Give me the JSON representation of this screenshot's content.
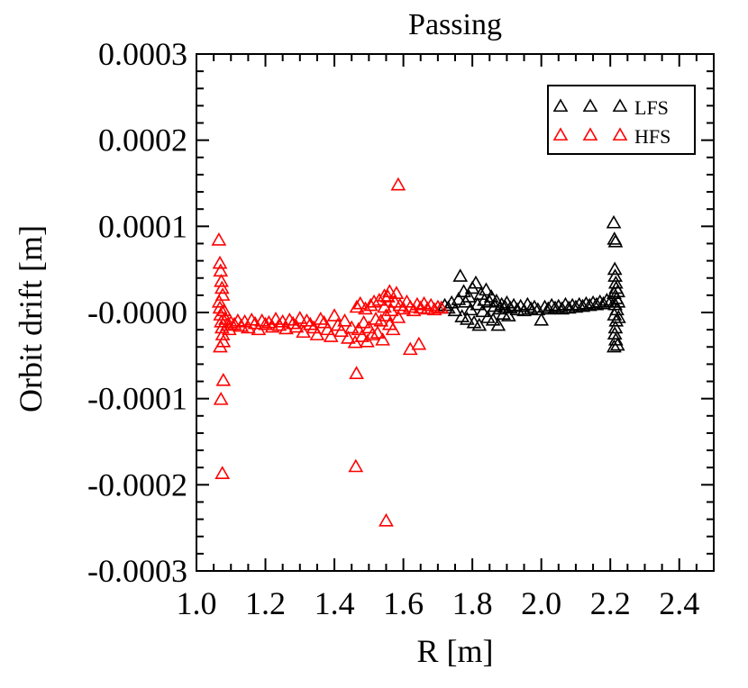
{
  "chart_data": {
    "type": "scatter",
    "title": "Passing",
    "xlabel": "R [m]",
    "ylabel": "Orbit drift [m]",
    "xlim": [
      1.0,
      2.5
    ],
    "ylim": [
      -0.0003,
      0.0003
    ],
    "x_ticks": [
      1.0,
      1.2,
      1.4,
      1.6,
      1.8,
      2.0,
      2.2,
      2.4
    ],
    "x_tick_labels": [
      "1.0",
      "1.2",
      "1.4",
      "1.6",
      "1.8",
      "2.0",
      "2.2",
      "2.4"
    ],
    "y_ticks": [
      0.0003,
      0.0002,
      0.0001,
      0.0,
      -0.0001,
      -0.0002,
      -0.0003
    ],
    "y_tick_labels": [
      "0.0003",
      "0.0002",
      "0.0001",
      "-0.0000",
      "-0.0001",
      "-0.0002",
      "-0.0003"
    ],
    "grid": false,
    "legend_position": "top-right",
    "marker": "open-triangle",
    "series": [
      {
        "name": "LFS",
        "color": "#000000",
        "points": [
          [
            1.72,
            8e-06
          ],
          [
            1.73,
            5e-06
          ],
          [
            1.74,
            1.1e-05
          ],
          [
            1.75,
            2e-06
          ],
          [
            1.76,
            1.5e-05
          ],
          [
            1.765,
            4.2e-05
          ],
          [
            1.77,
            -5e-06
          ],
          [
            1.775,
            2.4e-05
          ],
          [
            1.78,
            1.2e-05
          ],
          [
            1.785,
            -8e-06
          ],
          [
            1.79,
            1.8e-05
          ],
          [
            1.795,
            3e-06
          ],
          [
            1.8,
            2.8e-05
          ],
          [
            1.805,
            -1.2e-05
          ],
          [
            1.81,
            3.4e-05
          ],
          [
            1.815,
            9e-06
          ],
          [
            1.82,
            -1.5e-05
          ],
          [
            1.825,
            2.1e-05
          ],
          [
            1.83,
            1e-06
          ],
          [
            1.835,
            1.4e-05
          ],
          [
            1.84,
            2.6e-05
          ],
          [
            1.845,
            -6e-06
          ],
          [
            1.85,
            1.2e-05
          ],
          [
            1.855,
            1.8e-05
          ],
          [
            1.86,
            -9e-06
          ],
          [
            1.865,
            7e-06
          ],
          [
            1.87,
            1.3e-05
          ],
          [
            1.875,
            -1.5e-05
          ],
          [
            1.88,
            4e-06
          ],
          [
            1.885,
            9e-06
          ],
          [
            1.89,
            -2e-06
          ],
          [
            1.895,
            6e-06
          ],
          [
            1.9,
            1.1e-05
          ],
          [
            1.905,
            -4e-06
          ],
          [
            1.91,
            5e-06
          ],
          [
            1.92,
            8e-06
          ],
          [
            1.93,
            3e-06
          ],
          [
            1.94,
            7e-06
          ],
          [
            1.95,
            2e-06
          ],
          [
            1.96,
            9e-06
          ],
          [
            1.97,
            4e-06
          ],
          [
            1.98,
            6e-06
          ],
          [
            1.99,
            3e-06
          ],
          [
            2.0,
            -9e-06
          ],
          [
            2.01,
            6e-06
          ],
          [
            2.02,
            4e-06
          ],
          [
            2.03,
            8e-06
          ],
          [
            2.04,
            5e-06
          ],
          [
            2.05,
            7e-06
          ],
          [
            2.06,
            4e-06
          ],
          [
            2.07,
            9e-06
          ],
          [
            2.08,
            5e-06
          ],
          [
            2.09,
            8e-06
          ],
          [
            2.1,
            6e-06
          ],
          [
            2.11,
            9e-06
          ],
          [
            2.12,
            7e-06
          ],
          [
            2.13,
            1e-05
          ],
          [
            2.14,
            8e-06
          ],
          [
            2.15,
            1.1e-05
          ],
          [
            2.16,
            9e-06
          ],
          [
            2.17,
            1.2e-05
          ],
          [
            2.18,
            1e-05
          ],
          [
            2.19,
            1.4e-05
          ],
          [
            2.2,
            1.2e-05
          ],
          [
            2.21,
            0.000104
          ],
          [
            2.212,
            8.5e-05
          ],
          [
            2.215,
            8.2e-05
          ],
          [
            2.213,
            5e-05
          ],
          [
            2.214,
            4.2e-05
          ],
          [
            2.216,
            3.4e-05
          ],
          [
            2.217,
            2.8e-05
          ],
          [
            2.211,
            2.2e-05
          ],
          [
            2.218,
            1.6e-05
          ],
          [
            2.214,
            9e-06
          ],
          [
            2.219,
            3e-06
          ],
          [
            2.212,
            -3e-06
          ],
          [
            2.217,
            -1e-05
          ],
          [
            2.215,
            -1.8e-05
          ],
          [
            2.213,
            -2.5e-05
          ],
          [
            2.216,
            -3.2e-05
          ],
          [
            2.211,
            -4e-05
          ],
          [
            2.221,
            -3.8e-05
          ],
          [
            2.222,
            2.4e-05
          ],
          [
            2.223,
            1.2e-05
          ],
          [
            2.224,
            -6e-06
          ]
        ]
      },
      {
        "name": "HFS",
        "color": "#ff0000",
        "points": [
          [
            1.065,
            8.4e-05
          ],
          [
            1.068,
            5.7e-05
          ],
          [
            1.07,
            4.8e-05
          ],
          [
            1.072,
            3.6e-05
          ],
          [
            1.074,
            2.8e-05
          ],
          [
            1.076,
            2e-05
          ],
          [
            1.066,
            1.2e-05
          ],
          [
            1.068,
            5e-06
          ],
          [
            1.07,
            -3e-06
          ],
          [
            1.072,
            -1.1e-05
          ],
          [
            1.074,
            -1.8e-05
          ],
          [
            1.076,
            -2.6e-05
          ],
          [
            1.078,
            -3.4e-05
          ],
          [
            1.069,
            -4e-05
          ],
          [
            1.071,
            -0.000101
          ],
          [
            1.078,
            -7.9e-05
          ],
          [
            1.075,
            -0.000187
          ],
          [
            1.08,
            2e-06
          ],
          [
            1.085,
            -8e-06
          ],
          [
            1.09,
            -1.5e-05
          ],
          [
            1.095,
            -2e-05
          ],
          [
            1.1,
            -1.2e-05
          ],
          [
            1.11,
            -1.4e-05
          ],
          [
            1.12,
            -1e-05
          ],
          [
            1.13,
            -1.6e-05
          ],
          [
            1.14,
            -1.1e-05
          ],
          [
            1.15,
            -1.8e-05
          ],
          [
            1.16,
            -9e-06
          ],
          [
            1.17,
            -1.3e-05
          ],
          [
            1.18,
            -2e-05
          ],
          [
            1.19,
            -1e-05
          ],
          [
            1.2,
            -1.4e-05
          ],
          [
            1.21,
            -1.2e-05
          ],
          [
            1.22,
            -1.7e-05
          ],
          [
            1.23,
            -8e-06
          ],
          [
            1.24,
            -1.5e-05
          ],
          [
            1.25,
            -1.1e-05
          ],
          [
            1.26,
            -1.9e-05
          ],
          [
            1.27,
            -9e-06
          ],
          [
            1.28,
            -1.3e-05
          ],
          [
            1.29,
            -1.7e-05
          ],
          [
            1.3,
            -7e-06
          ],
          [
            1.31,
            -2.3e-05
          ],
          [
            1.32,
            -1e-05
          ],
          [
            1.33,
            -1.4e-05
          ],
          [
            1.34,
            -1.8e-05
          ],
          [
            1.35,
            -2.6e-05
          ],
          [
            1.36,
            -8e-06
          ],
          [
            1.37,
            -1.2e-05
          ],
          [
            1.38,
            -2e-05
          ],
          [
            1.39,
            -2.8e-05
          ],
          [
            1.4,
            -4e-06
          ],
          [
            1.41,
            -1.5e-05
          ],
          [
            1.42,
            -2.2e-05
          ],
          [
            1.43,
            -1e-05
          ],
          [
            1.44,
            -3e-05
          ],
          [
            1.45,
            -1.8e-05
          ],
          [
            1.46,
            -3.5e-05
          ],
          [
            1.465,
            6e-06
          ],
          [
            1.47,
            -2e-05
          ],
          [
            1.475,
            1e-05
          ],
          [
            1.48,
            -2.8e-05
          ],
          [
            1.485,
            -1.2e-05
          ],
          [
            1.49,
            4e-06
          ],
          [
            1.495,
            -3.4e-05
          ],
          [
            1.5,
            -1.8e-05
          ],
          [
            1.505,
            8e-06
          ],
          [
            1.51,
            -2.6e-05
          ],
          [
            1.515,
            1.2e-05
          ],
          [
            1.52,
            -8e-06
          ],
          [
            1.525,
            -2.4e-05
          ],
          [
            1.53,
            1.4e-05
          ],
          [
            1.535,
            -1e-05
          ],
          [
            1.54,
            -3.2e-05
          ],
          [
            1.545,
            6e-06
          ],
          [
            1.55,
            -4e-06
          ],
          [
            1.555,
            1.8e-05
          ],
          [
            1.56,
            -1.4e-05
          ],
          [
            1.565,
            2e-06
          ],
          [
            1.57,
            -2e-05
          ],
          [
            1.575,
            1.2e-05
          ],
          [
            1.58,
            2.2e-05
          ],
          [
            1.585,
            -6e-06
          ],
          [
            1.59,
            8e-06
          ],
          [
            1.6,
            4e-06
          ],
          [
            1.61,
            1.2e-05
          ],
          [
            1.62,
            6e-06
          ],
          [
            1.63,
            2e-06
          ],
          [
            1.64,
            9e-06
          ],
          [
            1.65,
            5e-06
          ],
          [
            1.66,
            1e-05
          ],
          [
            1.67,
            4e-06
          ],
          [
            1.68,
            8e-06
          ],
          [
            1.69,
            3e-06
          ],
          [
            1.7,
            6e-06
          ],
          [
            1.71,
            5e-06
          ],
          [
            1.585,
            0.000148
          ],
          [
            1.464,
            -7.1e-05
          ],
          [
            1.462,
            -0.000179
          ],
          [
            1.55,
            -0.000242
          ],
          [
            1.62,
            -4.3e-05
          ],
          [
            1.645,
            -3.7e-05
          ],
          [
            1.545,
            1.9e-05
          ],
          [
            1.56,
            2.4e-05
          ]
        ]
      }
    ]
  }
}
